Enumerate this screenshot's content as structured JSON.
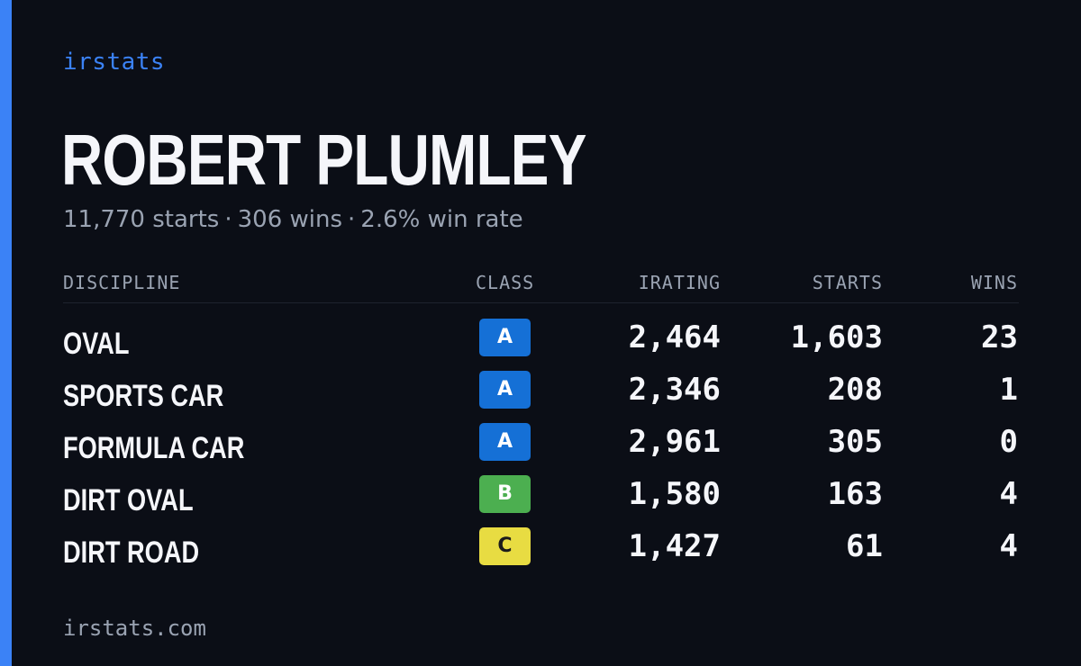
{
  "colors": {
    "accent": "#3b82f6",
    "background": "#0b0e16",
    "text_primary": "#f5f6fa",
    "text_muted": "#9aa3b2",
    "class_A": "#1570d6",
    "class_B": "#4caf50",
    "class_C": "#e8dc42"
  },
  "brand": "irstats",
  "driver_name": "ROBERT PLUMLEY",
  "summary": {
    "starts": "11,770 starts",
    "wins": "306 wins",
    "win_rate": "2.6% win rate",
    "separator": "·"
  },
  "table": {
    "headers": {
      "discipline": "DISCIPLINE",
      "class": "CLASS",
      "irating": "IRATING",
      "starts": "STARTS",
      "wins": "WINS"
    },
    "rows": [
      {
        "discipline": "OVAL",
        "class": "A",
        "irating": "2,464",
        "starts": "1,603",
        "wins": "23"
      },
      {
        "discipline": "SPORTS CAR",
        "class": "A",
        "irating": "2,346",
        "starts": "208",
        "wins": "1"
      },
      {
        "discipline": "FORMULA CAR",
        "class": "A",
        "irating": "2,961",
        "starts": "305",
        "wins": "0"
      },
      {
        "discipline": "DIRT OVAL",
        "class": "B",
        "irating": "1,580",
        "starts": "163",
        "wins": "4"
      },
      {
        "discipline": "DIRT ROAD",
        "class": "C",
        "irating": "1,427",
        "starts": "61",
        "wins": "4"
      }
    ]
  },
  "footer": "irstats.com"
}
